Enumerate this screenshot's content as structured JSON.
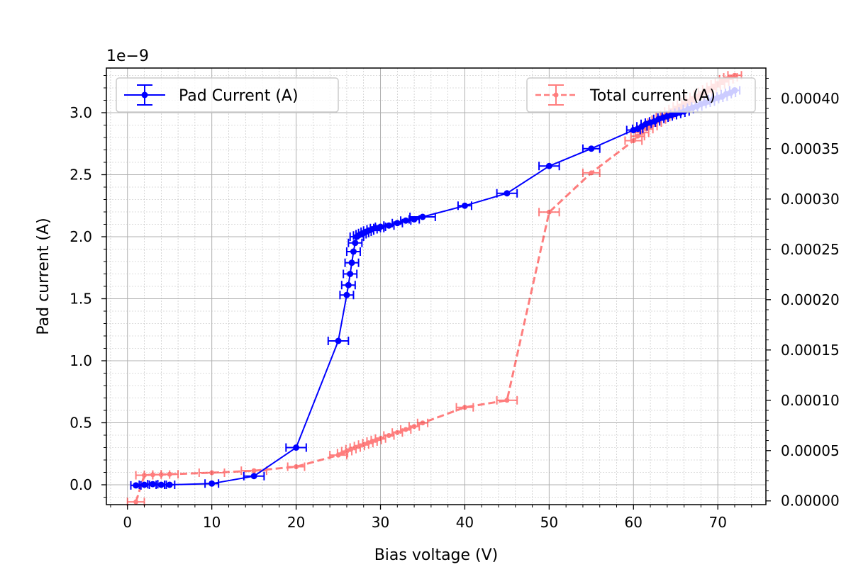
{
  "chart_data": {
    "type": "line",
    "xlabel": "Bias voltage (V)",
    "ylabel": "Pad current (A)",
    "y_offset_label": "1e−9",
    "xlim": [
      -2.5,
      75.7
    ],
    "ylim": [
      -0.16,
      3.36
    ],
    "y2lim": [
      -3.7e-06,
      0.0004302
    ],
    "x_ticks": [
      0,
      10,
      20,
      30,
      40,
      50,
      60,
      70
    ],
    "x_tick_labels": [
      "0",
      "10",
      "20",
      "30",
      "40",
      "50",
      "60",
      "70"
    ],
    "y_ticks": [
      0.0,
      0.5,
      1.0,
      1.5,
      2.0,
      2.5,
      3.0
    ],
    "y_tick_labels": [
      "0.0",
      "0.5",
      "1.0",
      "1.5",
      "2.0",
      "2.5",
      "3.0"
    ],
    "y2_ticks": [
      0.0,
      5e-05,
      0.0001,
      0.00015,
      0.0002,
      0.00025,
      0.0003,
      0.00035,
      0.0004
    ],
    "y2_tick_labels": [
      "0.00000",
      "0.00005",
      "0.00010",
      "0.00015",
      "0.00020",
      "0.00025",
      "0.00030",
      "0.00035",
      "0.00040"
    ],
    "grid": "major and minor",
    "series": [
      {
        "name": "Pad Current (A)",
        "axis": "left",
        "color": "#0000ff",
        "style": "solid",
        "legend_position": "upper-left",
        "x": [
          1,
          2,
          3,
          4,
          5,
          10,
          15,
          20,
          25,
          26,
          26.2,
          26.4,
          26.6,
          26.8,
          27,
          27.2,
          27.4,
          27.7,
          28,
          28.3,
          28.6,
          29,
          29.4,
          29.8,
          30,
          31,
          32,
          33,
          34,
          35,
          40,
          45,
          50,
          55,
          60,
          60.5,
          61,
          61.5,
          62,
          62.5,
          63,
          63.5,
          64,
          64.5,
          65,
          65.5,
          66,
          66.5,
          67,
          67.5,
          68,
          68.5,
          69,
          69.5,
          70,
          70.5,
          71,
          71.5,
          72
        ],
        "y": [
          -0.005,
          0.0,
          0.005,
          0.0,
          0.0,
          0.01,
          0.07,
          0.3,
          1.16,
          1.53,
          1.61,
          1.7,
          1.79,
          1.88,
          1.95,
          2.0,
          2.01,
          2.02,
          2.03,
          2.04,
          2.05,
          2.06,
          2.07,
          2.07,
          2.08,
          2.09,
          2.11,
          2.13,
          2.14,
          2.16,
          2.25,
          2.35,
          2.57,
          2.71,
          2.86,
          2.87,
          2.89,
          2.91,
          2.92,
          2.93,
          2.95,
          2.96,
          2.97,
          2.98,
          2.99,
          3.0,
          3.01,
          3.03,
          3.04,
          3.05,
          3.07,
          3.08,
          3.09,
          3.11,
          3.12,
          3.13,
          3.15,
          3.16,
          3.18
        ],
        "xerr": [
          0.6,
          0.6,
          0.6,
          0.6,
          0.6,
          0.8,
          1.2,
          1.2,
          1.2,
          0.8,
          0.8,
          0.8,
          0.8,
          0.8,
          0.8,
          0.8,
          0.6,
          0.6,
          0.6,
          0.6,
          0.6,
          0.6,
          0.6,
          0.6,
          0.6,
          0.6,
          0.6,
          0.6,
          0.6,
          1.5,
          0.8,
          1.2,
          1.2,
          1.0,
          0.8,
          0.6,
          0.6,
          0.6,
          0.6,
          0.6,
          0.6,
          0.6,
          0.6,
          0.6,
          0.6,
          0.6,
          0.6,
          0.6,
          0.6,
          0.6,
          0.6,
          0.6,
          0.6,
          0.6,
          0.6,
          0.6,
          0.6,
          0.6,
          0.6
        ]
      },
      {
        "name": "Total current (A)",
        "axis": "right",
        "color": "#ff0000",
        "style": "dashed",
        "legend_position": "upper-right",
        "x": [
          1,
          2,
          3,
          4,
          5,
          10,
          15,
          20,
          25,
          25.5,
          26,
          26.5,
          27,
          27.5,
          28,
          28.5,
          29,
          29.5,
          30,
          31,
          32,
          33,
          34,
          35,
          40,
          45,
          50,
          55,
          60,
          60.5,
          61,
          61.5,
          62,
          62.5,
          63,
          63.5,
          64,
          64.5,
          65,
          65.5,
          66,
          66.5,
          67,
          67.5,
          68,
          68.5,
          69,
          69.5,
          70,
          70.5,
          71,
          71.5,
          72
        ],
        "y": [
          -1e-06,
          2.55e-05,
          2.6e-05,
          2.62e-05,
          2.65e-05,
          2.8e-05,
          3e-05,
          3.4e-05,
          4.55e-05,
          4.75e-05,
          4.95e-05,
          5.15e-05,
          5.3e-05,
          5.45e-05,
          5.6e-05,
          5.75e-05,
          5.9e-05,
          6.05e-05,
          6.2e-05,
          6.5e-05,
          6.8e-05,
          7.1e-05,
          7.4e-05,
          7.75e-05,
          9.3e-05,
          0.0001,
          0.000287,
          0.000326,
          0.000358,
          0.0003625,
          0.000366,
          0.0003695,
          0.0003725,
          0.000376,
          0.000379,
          0.0003815,
          0.000384,
          0.000387,
          0.0003895,
          0.000392,
          0.000394,
          0.0003965,
          0.000399,
          0.0004015,
          0.000404,
          0.0004065,
          0.000409,
          0.0004115,
          0.000414,
          0.0004165,
          0.000419,
          0.000421,
          0.000423
        ],
        "xerr": [
          1.0,
          1.0,
          1.0,
          1.0,
          1.0,
          1.5,
          1.5,
          1.0,
          1.0,
          0.6,
          0.6,
          0.6,
          0.6,
          0.6,
          0.6,
          0.6,
          0.6,
          0.6,
          0.6,
          0.6,
          0.6,
          0.6,
          0.6,
          0.6,
          1.0,
          1.2,
          1.2,
          1.0,
          1.0,
          0.8,
          0.8,
          0.8,
          0.8,
          0.8,
          0.8,
          0.8,
          0.8,
          0.8,
          0.8,
          0.8,
          0.8,
          0.8,
          0.8,
          0.8,
          0.8,
          0.8,
          0.8,
          0.8,
          0.8,
          0.8,
          0.8,
          0.8,
          0.8
        ]
      }
    ]
  }
}
